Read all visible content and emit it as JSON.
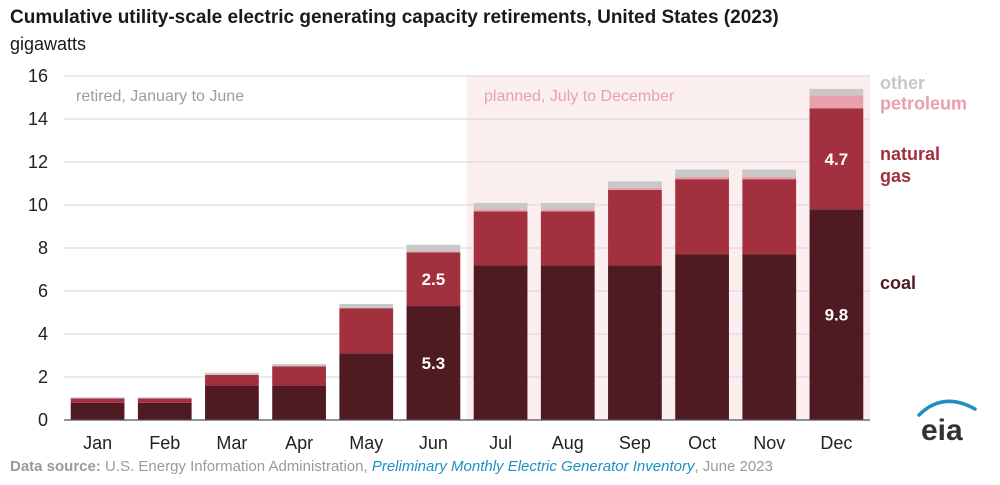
{
  "header": {
    "title": "Cumulative utility-scale electric generating capacity retirements, United States (2023)",
    "unit": "gigawatts"
  },
  "footer": {
    "label": "Data source:",
    "agency": "U.S. Energy Information Administration,",
    "publication": "Preliminary Monthly Electric Generator Inventory",
    "date": ", June 2023"
  },
  "logo": {
    "text": "eia",
    "icon": "eia-logo-icon"
  },
  "colors": {
    "coal": "#4f1a21",
    "natural_gas": "#a3303e",
    "petroleum": "#e8a0ab",
    "other": "#c8c8c8",
    "planned_bg": "#fbeeee",
    "retired_label": "#9c9c9c",
    "planned_label": "#e6a3ae"
  },
  "chart_data": {
    "type": "bar",
    "stacked": true,
    "categories": [
      "Jan",
      "Feb",
      "Mar",
      "Apr",
      "May",
      "Jun",
      "Jul",
      "Aug",
      "Sep",
      "Oct",
      "Nov",
      "Dec"
    ],
    "series": [
      {
        "name": "coal",
        "key": "coal",
        "values": [
          0.8,
          0.8,
          1.6,
          1.6,
          3.1,
          5.3,
          7.2,
          7.2,
          7.2,
          7.7,
          7.7,
          9.8
        ]
      },
      {
        "name": "natural gas",
        "key": "natural_gas",
        "values": [
          0.2,
          0.2,
          0.5,
          0.9,
          2.1,
          2.5,
          2.5,
          2.5,
          3.5,
          3.5,
          3.5,
          4.7
        ]
      },
      {
        "name": "petroleum",
        "key": "petroleum",
        "values": [
          0.0,
          0.0,
          0.0,
          0.0,
          0.0,
          0.05,
          0.1,
          0.1,
          0.1,
          0.1,
          0.1,
          0.6
        ]
      },
      {
        "name": "other",
        "key": "other",
        "values": [
          0.05,
          0.05,
          0.1,
          0.1,
          0.2,
          0.3,
          0.3,
          0.3,
          0.3,
          0.35,
          0.35,
          0.3
        ]
      }
    ],
    "data_labels": [
      {
        "category": "Jun",
        "series": "natural_gas",
        "text": "2.5"
      },
      {
        "category": "Jun",
        "series": "coal",
        "text": "5.3"
      },
      {
        "category": "Dec",
        "series": "natural_gas",
        "text": "4.7"
      },
      {
        "category": "Dec",
        "series": "coal",
        "text": "9.8"
      }
    ],
    "legend": [
      {
        "key": "other",
        "text": [
          "other"
        ],
        "value": 15.4
      },
      {
        "key": "petroleum",
        "text": [
          "petroleum"
        ],
        "value": 14.45
      },
      {
        "key": "natural_gas",
        "text": [
          "natural",
          "gas"
        ],
        "value": 12.1
      },
      {
        "key": "coal",
        "text": [
          "coal"
        ],
        "value": 6.1
      }
    ],
    "legend_position": "right",
    "ylim": [
      0,
      16
    ],
    "yticks": [
      0,
      2,
      4,
      6,
      8,
      10,
      12,
      14,
      16
    ],
    "grid": true,
    "annotations": {
      "retired": "retired, January to June",
      "planned": "planned, July to December"
    },
    "planned_start": "Jul"
  }
}
